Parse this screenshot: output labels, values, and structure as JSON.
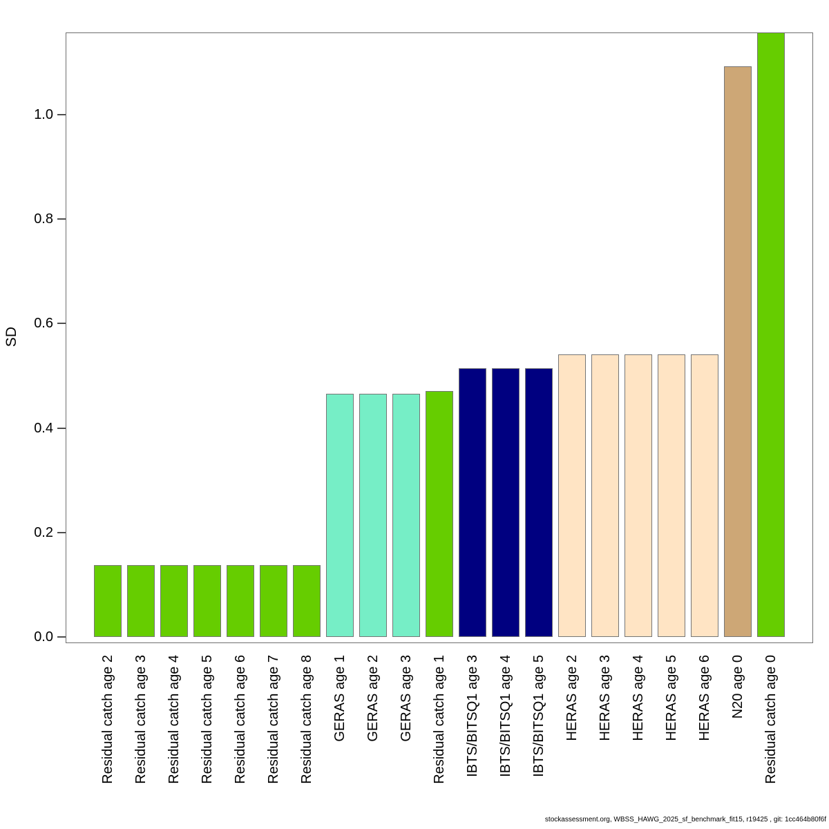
{
  "figure": {
    "background": "#ffffff",
    "footer": "stockassessment.org, WBSS_HAWG_2025_sf_benchmark_fit15, r19425 , git: 1cc464b80f6f"
  },
  "chart_data": {
    "type": "bar",
    "title": "",
    "xlabel": "",
    "ylabel": "SD",
    "ylim": [
      0,
      1.157
    ],
    "grid": false,
    "legend": "none",
    "y_ticks": [
      0.0,
      0.2,
      0.4,
      0.6,
      0.8,
      1.0
    ],
    "y_tick_labels": [
      "0.0",
      "0.2",
      "0.4",
      "0.6",
      "0.8",
      "1.0"
    ],
    "fleet_colors": {
      "Residual catch": "#66CD00",
      "GERAS": "#76EEC6",
      "IBTS/BITSQ1": "#000080",
      "HERAS": "#FFE4C4",
      "N20": "#CDA776"
    },
    "categories": [
      "Residual catch age 2",
      "Residual catch age 3",
      "Residual catch age 4",
      "Residual catch age 5",
      "Residual catch age 6",
      "Residual catch age 7",
      "Residual catch age 8",
      "GERAS age 1",
      "GERAS age 2",
      "GERAS age 3",
      "Residual catch age 1",
      "IBTS/BITSQ1 age 3",
      "IBTS/BITSQ1 age 4",
      "IBTS/BITSQ1 age 5",
      "HERAS age 2",
      "HERAS age 3",
      "HERAS age 4",
      "HERAS age 5",
      "HERAS age 6",
      "N20 age 0",
      "Residual catch age 0"
    ],
    "values": [
      0.137,
      0.137,
      0.137,
      0.137,
      0.137,
      0.137,
      0.137,
      0.466,
      0.466,
      0.466,
      0.471,
      0.514,
      0.514,
      0.514,
      0.541,
      0.541,
      0.541,
      0.541,
      0.541,
      1.092,
      1.16
    ],
    "colors": [
      "#66CD00",
      "#66CD00",
      "#66CD00",
      "#66CD00",
      "#66CD00",
      "#66CD00",
      "#66CD00",
      "#76EEC6",
      "#76EEC6",
      "#76EEC6",
      "#66CD00",
      "#000080",
      "#000080",
      "#000080",
      "#FFE4C4",
      "#FFE4C4",
      "#FFE4C4",
      "#FFE4C4",
      "#FFE4C4",
      "#CDA776",
      "#66CD00"
    ]
  }
}
